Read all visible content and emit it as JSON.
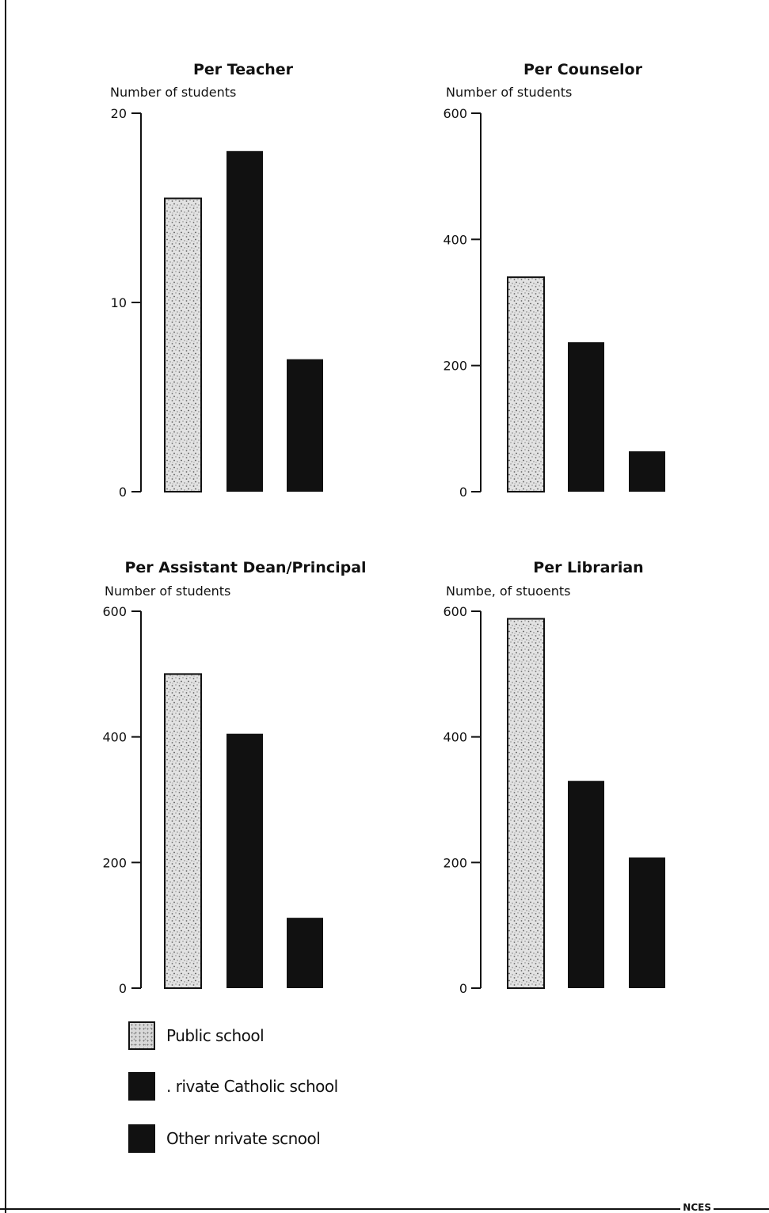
{
  "chart_data": [
    {
      "type": "bar",
      "title": "Per Teacher",
      "ylabel": "Number of students",
      "ylim": [
        0,
        20
      ],
      "yticks": [
        0,
        10,
        20
      ],
      "series": [
        {
          "name": "Public school",
          "values": [
            15.5
          ]
        },
        {
          "name": "Private Catholic school",
          "values": [
            18
          ]
        },
        {
          "name": "Other private school",
          "values": [
            7
          ]
        }
      ]
    },
    {
      "type": "bar",
      "title": "Per Counselor",
      "ylabel": "Number of students",
      "ylim": [
        0,
        600
      ],
      "yticks": [
        0,
        200,
        400,
        600
      ],
      "series": [
        {
          "name": "Public school",
          "values": [
            340
          ]
        },
        {
          "name": "Private Catholic school",
          "values": [
            237
          ]
        },
        {
          "name": "Other private school",
          "values": [
            64
          ]
        }
      ]
    },
    {
      "type": "bar",
      "title": "Per Assistant Dean/Principal",
      "ylabel": "Number of students",
      "ylim": [
        0,
        600
      ],
      "yticks": [
        0,
        200,
        400,
        600
      ],
      "series": [
        {
          "name": "Public school",
          "values": [
            500
          ]
        },
        {
          "name": "Private Catholic school",
          "values": [
            405
          ]
        },
        {
          "name": "Other private school",
          "values": [
            112
          ]
        }
      ]
    },
    {
      "type": "bar",
      "title": "Per Librarian",
      "ylabel": "Numbe, of stuoents",
      "ylim": [
        0,
        600
      ],
      "yticks": [
        0,
        200,
        400,
        600
      ],
      "series": [
        {
          "name": "Public school",
          "values": [
            588
          ]
        },
        {
          "name": "Private Catholic school",
          "values": [
            330
          ]
        },
        {
          "name": "Other private school",
          "values": [
            208
          ]
        }
      ]
    }
  ],
  "legend": {
    "items": [
      {
        "label": "Public school",
        "key": "public"
      },
      {
        "label": ". rivate Catholic school",
        "key": "catholic"
      },
      {
        "label": "Other nrivate scnool",
        "key": "other"
      }
    ]
  },
  "footer": {
    "label": "NCES"
  },
  "colors": {
    "public_fill": "#d9d9d9",
    "private_fill": "#111111",
    "axis": "#111111"
  }
}
